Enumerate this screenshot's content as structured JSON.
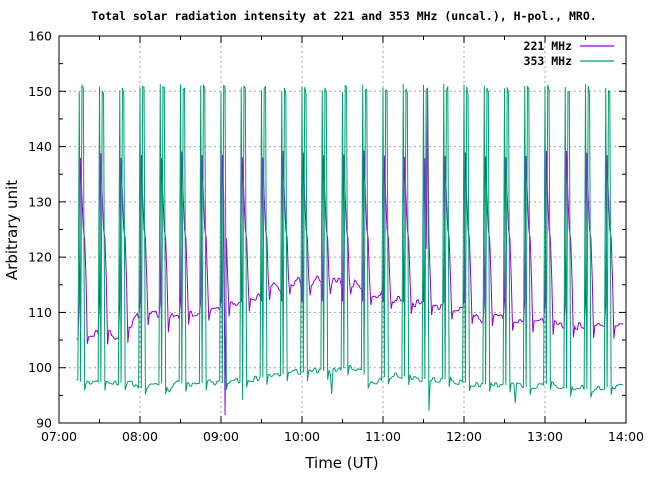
{
  "chart_data": {
    "type": "line",
    "title": "Total solar radiation intensity at 221 and 353 MHz (uncal.), H-pol., MRO.",
    "xlabel": "Time (UT)",
    "ylabel": "Arbitrary unit",
    "background_color": "#ffffff",
    "axis_color": "#000000",
    "grid_color": "#a6a6a6",
    "grid_on": true,
    "legend_position": "top-right-inside",
    "ylim": [
      90,
      160
    ],
    "yticks": [
      90,
      100,
      110,
      120,
      130,
      140,
      150,
      160
    ],
    "y_minor_ticks": [
      95,
      105,
      115,
      125,
      135,
      145,
      155
    ],
    "x_total_min": 420,
    "xticks": [
      {
        "min": 0,
        "label": "07:00"
      },
      {
        "min": 60,
        "label": "08:00"
      },
      {
        "min": 120,
        "label": "09:00"
      },
      {
        "min": 180,
        "label": "10:00"
      },
      {
        "min": 240,
        "label": "11:00"
      },
      {
        "min": 300,
        "label": "12:00"
      },
      {
        "min": 360,
        "label": "13:00"
      },
      {
        "min": 420,
        "label": "14:00"
      }
    ],
    "x_minor_ticks_min": [
      30,
      90,
      150,
      210,
      270,
      330,
      390
    ],
    "x_gridline_min": [
      60,
      120,
      180,
      240,
      300,
      360
    ],
    "y_gridline_vals": [
      100,
      110,
      120,
      130,
      140,
      150
    ],
    "sampling": {
      "start_min": 13,
      "end_min": 418,
      "step_min": 1,
      "noise_seed": 1234
    },
    "calibration_times_min": [
      15,
      30,
      45,
      60,
      75,
      90,
      105,
      120,
      135,
      150,
      165,
      180,
      195,
      210,
      225,
      240,
      255,
      270,
      285,
      300,
      315,
      330,
      345,
      360,
      375,
      390,
      405
    ],
    "series": [
      {
        "name": "221 MHz",
        "color": "#9400d3",
        "noise": {
          "amp": 0.75,
          "hold": 2
        },
        "baseline_keypoints": [
          [
            13,
            105.8
          ],
          [
            18,
            106.4
          ],
          [
            26,
            106.2
          ],
          [
            34,
            106.5
          ],
          [
            40,
            105.6
          ],
          [
            47,
            105.3
          ],
          [
            52,
            106.8
          ],
          [
            58,
            109.2
          ],
          [
            66,
            109.7
          ],
          [
            74,
            109.4
          ],
          [
            80,
            108.2
          ],
          [
            86,
            109.5
          ],
          [
            95,
            109.8
          ],
          [
            104,
            110.1
          ],
          [
            112,
            110.6
          ],
          [
            120,
            110.9
          ],
          [
            128,
            111.4
          ],
          [
            136,
            112.4
          ],
          [
            144,
            112.1
          ],
          [
            152,
            113.2
          ],
          [
            158,
            114.8
          ],
          [
            164,
            113.8
          ],
          [
            170,
            115.2
          ],
          [
            177,
            115.6
          ],
          [
            184,
            114.8
          ],
          [
            191,
            115.9
          ],
          [
            198,
            115.1
          ],
          [
            205,
            115.7
          ],
          [
            212,
            115.0
          ],
          [
            218,
            115.4
          ],
          [
            225,
            114.1
          ],
          [
            232,
            113.2
          ],
          [
            240,
            113.4
          ],
          [
            248,
            112.4
          ],
          [
            256,
            112.0
          ],
          [
            264,
            111.6
          ],
          [
            272,
            111.9
          ],
          [
            280,
            111.2
          ],
          [
            288,
            110.8
          ],
          [
            296,
            110.6
          ],
          [
            304,
            110.3
          ],
          [
            312,
            108.8
          ],
          [
            320,
            109.6
          ],
          [
            328,
            109.1
          ],
          [
            336,
            108.7
          ],
          [
            344,
            108.9
          ],
          [
            352,
            108.3
          ],
          [
            360,
            108.5
          ],
          [
            368,
            107.8
          ],
          [
            376,
            107.4
          ],
          [
            384,
            107.6
          ],
          [
            392,
            107.1
          ],
          [
            400,
            107.6
          ],
          [
            406,
            107.2
          ],
          [
            410,
            107.3
          ],
          [
            418,
            107.3
          ]
        ],
        "cal_pattern": [
          {
            "off": 0,
            "val": 112.0
          },
          {
            "off": 1,
            "val": 138.6
          },
          {
            "off": 2,
            "val": 130.9
          },
          {
            "off": 3,
            "val": 125.0
          },
          {
            "off": 4,
            "val": 123.4
          },
          {
            "off": 5,
            "val": 116.2
          },
          {
            "off": 6,
            "rel": -2.0
          }
        ]
      },
      {
        "name": "353 MHz",
        "color": "#009e73",
        "noise": {
          "amp": 0.5,
          "hold": 2
        },
        "baseline_keypoints": [
          [
            13,
            97.6
          ],
          [
            22,
            97.2
          ],
          [
            30,
            97.5
          ],
          [
            40,
            97.0
          ],
          [
            48,
            97.4
          ],
          [
            56,
            97.1
          ],
          [
            62,
            96.2
          ],
          [
            68,
            97.3
          ],
          [
            76,
            97.2
          ],
          [
            82,
            96.1
          ],
          [
            88,
            97.2
          ],
          [
            98,
            97.0
          ],
          [
            108,
            97.3
          ],
          [
            118,
            97.2
          ],
          [
            128,
            97.5
          ],
          [
            138,
            97.8
          ],
          [
            148,
            98.1
          ],
          [
            158,
            98.5
          ],
          [
            168,
            98.9
          ],
          [
            176,
            99.3
          ],
          [
            184,
            99.0
          ],
          [
            192,
            99.6
          ],
          [
            200,
            99.2
          ],
          [
            208,
            99.8
          ],
          [
            216,
            100.1
          ],
          [
            224,
            99.5
          ],
          [
            230,
            97.3
          ],
          [
            234,
            96.9
          ],
          [
            240,
            98.2
          ],
          [
            248,
            98.6
          ],
          [
            256,
            98.4
          ],
          [
            264,
            98.1
          ],
          [
            272,
            97.9
          ],
          [
            280,
            97.7
          ],
          [
            288,
            98.0
          ],
          [
            296,
            97.4
          ],
          [
            304,
            97.2
          ],
          [
            312,
            96.9
          ],
          [
            320,
            97.1
          ],
          [
            328,
            96.8
          ],
          [
            336,
            97.0
          ],
          [
            344,
            96.6
          ],
          [
            352,
            96.4
          ],
          [
            360,
            96.9
          ],
          [
            364,
            97.4
          ],
          [
            370,
            96.5
          ],
          [
            378,
            96.2
          ],
          [
            386,
            96.4
          ],
          [
            394,
            96.0
          ],
          [
            402,
            96.3
          ],
          [
            408,
            96.5
          ],
          [
            418,
            96.5
          ]
        ],
        "cal_pattern": [
          {
            "off": 0,
            "val": 150.6
          },
          {
            "off": 1,
            "rel": 0.0
          },
          {
            "off": 2,
            "val": 150.7
          },
          {
            "off": 3,
            "val": 150.1
          },
          {
            "off": 4,
            "rel": -1.4
          }
        ]
      }
    ],
    "special_events": [
      {
        "series": 0,
        "t_min": 123,
        "value": 91.4
      },
      {
        "series": 0,
        "t_min": 272,
        "value": 121.5
      },
      {
        "series": 0,
        "t_min": 273,
        "value": 150.4
      },
      {
        "series": 1,
        "t_min": 274,
        "value": 92.2
      },
      {
        "series": 1,
        "t_min": 136,
        "value": 94.2
      },
      {
        "series": 1,
        "t_min": 202,
        "value": 95.3
      },
      {
        "series": 1,
        "t_min": 338,
        "value": 93.6
      }
    ]
  }
}
